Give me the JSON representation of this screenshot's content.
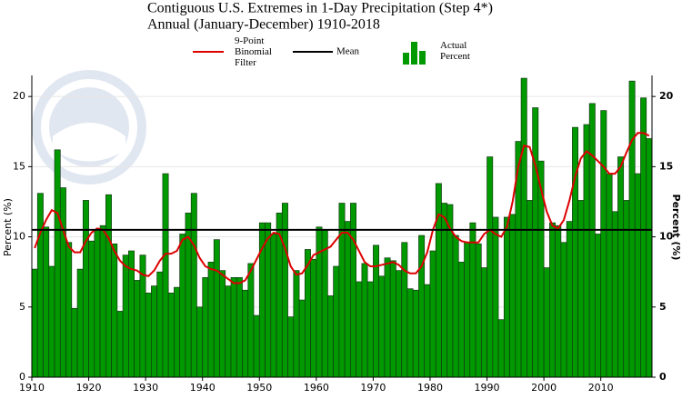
{
  "chart_data": {
    "type": "bar",
    "title": "Contiguous U.S. Extremes in 1-Day Precipitation (Step 4*)",
    "subtitle": "Annual (January-December) 1910-2018",
    "ylabel": "Percent (%)",
    "y2label": "Percent (%)",
    "xlim": [
      1910,
      2019
    ],
    "xticks": [
      1910,
      1920,
      1930,
      1940,
      1950,
      1960,
      1970,
      1980,
      1990,
      2000,
      2010
    ],
    "ylim": [
      0,
      21.5
    ],
    "yticks": [
      0,
      5,
      10,
      15,
      20
    ],
    "y2lim": [
      0,
      21.5
    ],
    "y2ticks": [
      0,
      5,
      10,
      15,
      20
    ],
    "x": [
      1910,
      1911,
      1912,
      1913,
      1914,
      1915,
      1916,
      1917,
      1918,
      1919,
      1920,
      1921,
      1922,
      1923,
      1924,
      1925,
      1926,
      1927,
      1928,
      1929,
      1930,
      1931,
      1932,
      1933,
      1934,
      1935,
      1936,
      1937,
      1938,
      1939,
      1940,
      1941,
      1942,
      1943,
      1944,
      1945,
      1946,
      1947,
      1948,
      1949,
      1950,
      1951,
      1952,
      1953,
      1954,
      1955,
      1956,
      1957,
      1958,
      1959,
      1960,
      1961,
      1962,
      1963,
      1964,
      1965,
      1966,
      1967,
      1968,
      1969,
      1970,
      1971,
      1972,
      1973,
      1974,
      1975,
      1976,
      1977,
      1978,
      1979,
      1980,
      1981,
      1982,
      1983,
      1984,
      1985,
      1986,
      1987,
      1988,
      1989,
      1990,
      1991,
      1992,
      1993,
      1994,
      1995,
      1996,
      1997,
      1998,
      1999,
      2000,
      2001,
      2002,
      2003,
      2004,
      2005,
      2006,
      2007,
      2008,
      2009,
      2010,
      2011,
      2012,
      2013,
      2014,
      2015,
      2016,
      2017,
      2018
    ],
    "series": [
      {
        "name": "Actual Percent",
        "color": "#009900",
        "type": "bar",
        "values": [
          7.7,
          13.1,
          10.7,
          7.9,
          16.2,
          13.5,
          9.6,
          4.9,
          7.7,
          12.6,
          9.7,
          10.5,
          10.8,
          13.0,
          9.5,
          4.7,
          8.7,
          9.0,
          6.9,
          8.7,
          6.0,
          6.5,
          7.5,
          14.5,
          6.0,
          6.4,
          10.2,
          11.7,
          13.1,
          5.0,
          7.1,
          8.2,
          9.8,
          7.6,
          6.5,
          7.1,
          7.1,
          6.2,
          8.1,
          4.4,
          11.0,
          11.0,
          10.2,
          11.7,
          12.4,
          4.3,
          7.6,
          5.5,
          9.1,
          8.4,
          10.7,
          10.5,
          5.8,
          7.9,
          12.4,
          11.1,
          12.4,
          6.8,
          8.1,
          6.8,
          9.4,
          7.2,
          8.5,
          8.3,
          7.6,
          9.6,
          6.3,
          6.2,
          10.1,
          6.6,
          9.0,
          13.8,
          12.4,
          12.3,
          10.1,
          8.2,
          9.6,
          11.0,
          9.5,
          7.8,
          15.7,
          11.4,
          4.1,
          11.4,
          11.6,
          16.8,
          21.3,
          12.6,
          19.2,
          15.4,
          7.8,
          11.0,
          10.8,
          9.6,
          11.1,
          17.8,
          12.6,
          18.0,
          19.5,
          10.2,
          19.0,
          14.5,
          11.8,
          15.7,
          12.6,
          21.1,
          14.5,
          19.9,
          17.0
        ]
      },
      {
        "name": "9-Point Binomial Filter",
        "color": "#dd0000",
        "type": "line",
        "values": [
          9.2,
          10.3,
          11.2,
          11.9,
          11.7,
          10.5,
          9.3,
          8.9,
          8.9,
          9.7,
          10.3,
          10.6,
          10.5,
          9.9,
          9.0,
          8.3,
          7.9,
          7.7,
          7.6,
          7.3,
          7.2,
          7.6,
          8.3,
          8.8,
          8.8,
          9.0,
          9.8,
          10.0,
          9.4,
          8.5,
          7.9,
          7.7,
          7.6,
          7.3,
          7.0,
          6.7,
          6.7,
          6.9,
          7.6,
          8.4,
          9.2,
          9.9,
          10.3,
          10.2,
          9.2,
          7.9,
          7.3,
          7.4,
          8.0,
          8.7,
          8.9,
          9.1,
          9.3,
          9.8,
          10.3,
          10.3,
          9.8,
          9.0,
          8.2,
          7.9,
          7.9,
          8.0,
          8.1,
          8.2,
          8.0,
          7.6,
          7.4,
          7.4,
          7.9,
          8.9,
          10.5,
          11.6,
          11.4,
          10.6,
          10.0,
          9.7,
          9.6,
          9.6,
          9.6,
          10.2,
          10.5,
          10.2,
          10.0,
          10.7,
          12.5,
          15.0,
          16.5,
          16.4,
          15.1,
          13.4,
          11.8,
          10.8,
          10.6,
          11.2,
          12.6,
          14.3,
          15.6,
          16.1,
          15.8,
          15.4,
          15.0,
          14.5,
          14.5,
          15.0,
          16.0,
          16.9,
          17.4,
          17.4,
          17.2
        ]
      }
    ],
    "mean": {
      "name": "Mean",
      "color": "#000000",
      "value": 10.5
    }
  }
}
